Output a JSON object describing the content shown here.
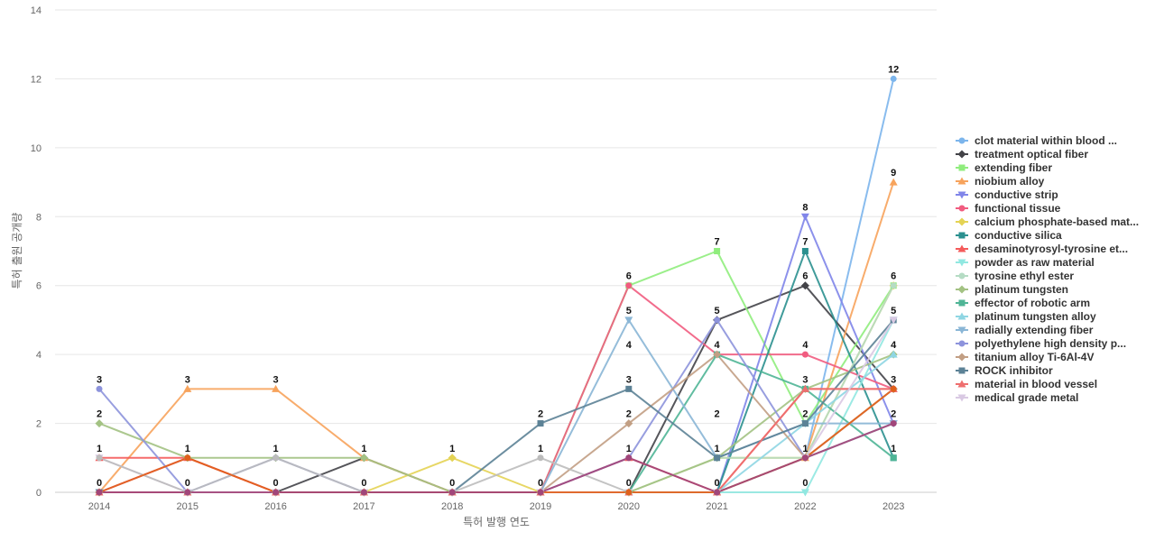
{
  "chart_data": {
    "type": "line",
    "title": "",
    "xlabel": "특허 발행 연도",
    "ylabel": "특허 출원 공개량",
    "x": [
      "2014",
      "2015",
      "2016",
      "2017",
      "2018",
      "2019",
      "2020",
      "2021",
      "2022",
      "2023"
    ],
    "ylim": [
      0,
      14
    ],
    "yticks": [
      0,
      2,
      4,
      6,
      8,
      10,
      12,
      14
    ],
    "grid": true,
    "legend_position": "right",
    "series": [
      {
        "name": "clot material within blood ...",
        "color": "#7cb5ec",
        "marker": "circle",
        "values": [
          0,
          0,
          0,
          0,
          0,
          0,
          0,
          0,
          1,
          12
        ]
      },
      {
        "name": "treatment optical fiber",
        "color": "#434348",
        "marker": "diamond",
        "values": [
          0,
          0,
          0,
          1,
          0,
          0,
          0,
          5,
          6,
          3
        ]
      },
      {
        "name": "extending fiber",
        "color": "#90ed7d",
        "marker": "square",
        "values": [
          0,
          0,
          0,
          0,
          0,
          0,
          6,
          7,
          2,
          6
        ]
      },
      {
        "name": "niobium alloy",
        "color": "#f7a35c",
        "marker": "triangle",
        "values": [
          0,
          3,
          3,
          1,
          0,
          0,
          0,
          0,
          1,
          9
        ]
      },
      {
        "name": "conductive strip",
        "color": "#8085e9",
        "marker": "triangle-down",
        "values": [
          0,
          0,
          0,
          0,
          0,
          0,
          0,
          0,
          8,
          2
        ]
      },
      {
        "name": "functional tissue",
        "color": "#f15c80",
        "marker": "circle",
        "values": [
          0,
          1,
          0,
          0,
          0,
          0,
          6,
          4,
          4,
          3
        ]
      },
      {
        "name": "calcium phosphate-based mat...",
        "color": "#e4d354",
        "marker": "diamond",
        "values": [
          0,
          0,
          0,
          0,
          1,
          0,
          0,
          1,
          1,
          6
        ]
      },
      {
        "name": "conductive silica",
        "color": "#2b908f",
        "marker": "square",
        "values": [
          0,
          0,
          0,
          0,
          0,
          0,
          0,
          0,
          7,
          1
        ]
      },
      {
        "name": "desaminotyrosyl-tyrosine et...",
        "color": "#f45b5b",
        "marker": "triangle",
        "values": [
          1,
          1,
          0,
          0,
          0,
          0,
          1,
          0,
          3,
          3
        ]
      },
      {
        "name": "powder as raw material",
        "color": "#91e8e1",
        "marker": "triangle-down",
        "values": [
          0,
          0,
          0,
          0,
          0,
          0,
          0,
          0,
          0,
          5
        ]
      },
      {
        "name": "tyrosine ethyl ester",
        "color": "#b5dcc4",
        "marker": "circle",
        "values": [
          0,
          0,
          0,
          0,
          0,
          0,
          0,
          1,
          1,
          6
        ]
      },
      {
        "name": "platinum tungsten",
        "color": "#a3c283",
        "marker": "diamond",
        "values": [
          2,
          1,
          1,
          1,
          0,
          0,
          0,
          1,
          3,
          4
        ]
      },
      {
        "name": "effector of robotic arm",
        "color": "#4fb596",
        "marker": "square",
        "values": [
          0,
          0,
          0,
          0,
          0,
          0,
          0,
          4,
          3,
          1
        ]
      },
      {
        "name": "platinum tungsten alloy",
        "color": "#8fd6e3",
        "marker": "triangle",
        "values": [
          0,
          0,
          0,
          0,
          0,
          0,
          0,
          0,
          2,
          4
        ]
      },
      {
        "name": "radially extending fiber",
        "color": "#8ab6d6",
        "marker": "triangle-down",
        "values": [
          0,
          0,
          0,
          0,
          0,
          0,
          5,
          1,
          2,
          2
        ]
      },
      {
        "name": "polyethylene high density p...",
        "color": "#8d93dc",
        "marker": "circle",
        "values": [
          3,
          0,
          1,
          0,
          0,
          0,
          1,
          5,
          1,
          2
        ]
      },
      {
        "name": "titanium alloy Ti-6Al-4V",
        "color": "#c29f84",
        "marker": "diamond",
        "values": [
          0,
          0,
          0,
          0,
          0,
          0,
          2,
          4,
          1,
          3
        ]
      },
      {
        "name": "ROCK inhibitor",
        "color": "#5c8296",
        "marker": "square",
        "values": [
          0,
          0,
          0,
          0,
          0,
          2,
          3,
          1,
          2,
          5
        ]
      },
      {
        "name": "material in blood vessel",
        "color": "#ee6f6f",
        "marker": "triangle",
        "values": [
          0,
          0,
          0,
          0,
          0,
          0,
          0,
          0,
          3,
          3
        ]
      },
      {
        "name": "medical grade metal",
        "color": "#d9c9e3",
        "marker": "triangle-down",
        "values": [
          1,
          0,
          0,
          0,
          0,
          0,
          0,
          0,
          1,
          5
        ]
      }
    ],
    "extra_series": [
      {
        "color": "#bcbcbc",
        "marker": "circle",
        "values": [
          1,
          0,
          1,
          0,
          0,
          1,
          0,
          0,
          1,
          2
        ]
      },
      {
        "color": "#e0601b",
        "marker": "circle",
        "values": [
          0,
          1,
          0,
          0,
          0,
          0,
          0,
          0,
          1,
          3
        ]
      },
      {
        "color": "#a1467a",
        "marker": "circle",
        "values": [
          0,
          0,
          0,
          0,
          0,
          0,
          1,
          0,
          1,
          2
        ]
      }
    ],
    "data_labels": [
      {
        "x": "2014",
        "y": 3,
        "text": "3"
      },
      {
        "x": "2014",
        "y": 2,
        "text": "2"
      },
      {
        "x": "2014",
        "y": 1,
        "text": "1"
      },
      {
        "x": "2014",
        "y": 0,
        "text": "0"
      },
      {
        "x": "2015",
        "y": 3,
        "text": "3"
      },
      {
        "x": "2015",
        "y": 1,
        "text": "1"
      },
      {
        "x": "2015",
        "y": 0,
        "text": "0"
      },
      {
        "x": "2016",
        "y": 3,
        "text": "3"
      },
      {
        "x": "2016",
        "y": 1,
        "text": "1"
      },
      {
        "x": "2016",
        "y": 0,
        "text": "0"
      },
      {
        "x": "2017",
        "y": 1,
        "text": "1"
      },
      {
        "x": "2017",
        "y": 0,
        "text": "0"
      },
      {
        "x": "2018",
        "y": 1,
        "text": "1"
      },
      {
        "x": "2018",
        "y": 0,
        "text": "0"
      },
      {
        "x": "2019",
        "y": 2,
        "text": "2"
      },
      {
        "x": "2019",
        "y": 1,
        "text": "1"
      },
      {
        "x": "2019",
        "y": 0,
        "text": "0"
      },
      {
        "x": "2020",
        "y": 6,
        "text": "6"
      },
      {
        "x": "2020",
        "y": 5,
        "text": "5"
      },
      {
        "x": "2020",
        "y": 4,
        "text": "4"
      },
      {
        "x": "2020",
        "y": 3,
        "text": "3"
      },
      {
        "x": "2020",
        "y": 2,
        "text": "2"
      },
      {
        "x": "2020",
        "y": 1,
        "text": "1"
      },
      {
        "x": "2020",
        "y": 0,
        "text": "0"
      },
      {
        "x": "2021",
        "y": 7,
        "text": "7"
      },
      {
        "x": "2021",
        "y": 5,
        "text": "5"
      },
      {
        "x": "2021",
        "y": 4,
        "text": "4"
      },
      {
        "x": "2021",
        "y": 2,
        "text": "2"
      },
      {
        "x": "2021",
        "y": 1,
        "text": "1"
      },
      {
        "x": "2021",
        "y": 0,
        "text": "0"
      },
      {
        "x": "2022",
        "y": 8,
        "text": "8"
      },
      {
        "x": "2022",
        "y": 7,
        "text": "7"
      },
      {
        "x": "2022",
        "y": 6,
        "text": "6"
      },
      {
        "x": "2022",
        "y": 4,
        "text": "4"
      },
      {
        "x": "2022",
        "y": 3,
        "text": "3"
      },
      {
        "x": "2022",
        "y": 2,
        "text": "2"
      },
      {
        "x": "2022",
        "y": 1,
        "text": "1"
      },
      {
        "x": "2022",
        "y": 0,
        "text": "0"
      },
      {
        "x": "2023",
        "y": 12,
        "text": "12"
      },
      {
        "x": "2023",
        "y": 9,
        "text": "9"
      },
      {
        "x": "2023",
        "y": 6,
        "text": "6"
      },
      {
        "x": "2023",
        "y": 5,
        "text": "5"
      },
      {
        "x": "2023",
        "y": 4,
        "text": "4"
      },
      {
        "x": "2023",
        "y": 3,
        "text": "3"
      },
      {
        "x": "2023",
        "y": 2,
        "text": "2"
      },
      {
        "x": "2023",
        "y": 1,
        "text": "1"
      }
    ]
  }
}
